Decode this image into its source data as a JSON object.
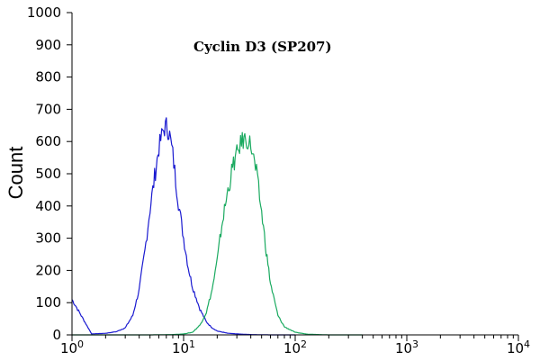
{
  "chart_data": {
    "type": "line",
    "title": "Cyclin D3 (SP207)",
    "xlabel": "",
    "ylabel": "Count",
    "x_scale": "log",
    "xlim": [
      1,
      10000
    ],
    "ylim": [
      0,
      1000
    ],
    "x_ticks": [
      {
        "value": 1,
        "base": "10",
        "exp": "0"
      },
      {
        "value": 10,
        "base": "10",
        "exp": "1"
      },
      {
        "value": 100,
        "base": "10",
        "exp": "2"
      },
      {
        "value": 1000,
        "base": "10",
        "exp": "3"
      },
      {
        "value": 10000,
        "base": "10",
        "exp": "4"
      }
    ],
    "y_ticks": [
      "0",
      "100",
      "200",
      "300",
      "400",
      "500",
      "600",
      "700",
      "800",
      "900",
      "1000"
    ],
    "grid": false,
    "series": [
      {
        "color": "#1a1ad0",
        "x": [
          1,
          1.5,
          2,
          2.5,
          3,
          3.5,
          4,
          4.5,
          5,
          5.5,
          6,
          6.5,
          7,
          7.5,
          8,
          8.5,
          9,
          10,
          11,
          12,
          14,
          16,
          18,
          20,
          25,
          30,
          40,
          60,
          100
        ],
        "y": [
          110,
          3,
          5,
          10,
          22,
          60,
          140,
          260,
          390,
          490,
          580,
          630,
          650,
          620,
          560,
          480,
          410,
          300,
          210,
          150,
          80,
          40,
          22,
          12,
          5,
          3,
          1,
          0,
          0
        ]
      },
      {
        "color": "#1aaa60",
        "x": [
          1,
          2,
          5,
          8,
          10,
          12,
          14,
          16,
          18,
          20,
          22,
          25,
          28,
          30,
          33,
          36,
          40,
          45,
          50,
          55,
          60,
          70,
          80,
          100,
          130,
          200,
          400
        ],
        "y": [
          0,
          0,
          0,
          1,
          3,
          8,
          30,
          70,
          140,
          230,
          340,
          450,
          530,
          560,
          600,
          610,
          590,
          500,
          380,
          260,
          160,
          60,
          25,
          8,
          2,
          0,
          0
        ]
      }
    ]
  }
}
